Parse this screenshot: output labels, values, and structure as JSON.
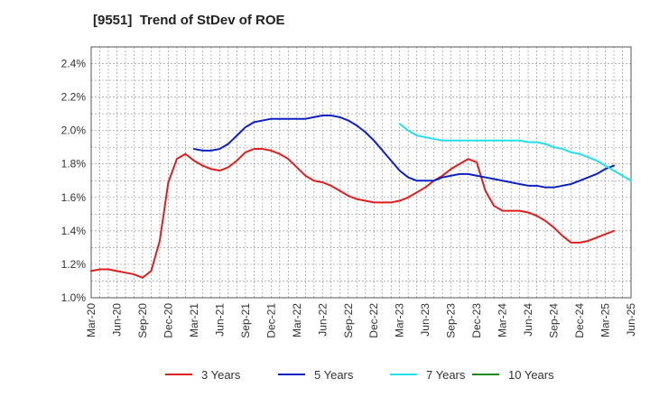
{
  "chart_data": {
    "type": "line",
    "title": "[9551]  Trend of StDev of ROE",
    "xlabel": "",
    "ylabel": "",
    "x_ticks": [
      "Mar-20",
      "Jun-20",
      "Sep-20",
      "Dec-20",
      "Mar-21",
      "Jun-21",
      "Sep-21",
      "Dec-21",
      "Mar-22",
      "Jun-22",
      "Sep-22",
      "Dec-22",
      "Mar-23",
      "Jun-23",
      "Sep-23",
      "Dec-23",
      "Mar-24",
      "Jun-24",
      "Sep-24",
      "Dec-24",
      "Mar-25",
      "Jun-25"
    ],
    "y_ticks": [
      "1.0%",
      "1.2%",
      "1.4%",
      "1.6%",
      "1.8%",
      "2.0%",
      "2.2%",
      "2.4%"
    ],
    "ylim": [
      1.0,
      2.5
    ],
    "grid": true,
    "legend_position": "bottom",
    "series": [
      {
        "name": "3 Years",
        "color": "#dd1f1f",
        "start_month": 0,
        "values": [
          1.16,
          1.17,
          1.17,
          1.16,
          1.15,
          1.14,
          1.12,
          1.16,
          1.34,
          1.69,
          1.83,
          1.86,
          1.82,
          1.79,
          1.77,
          1.76,
          1.78,
          1.82,
          1.87,
          1.89,
          1.89,
          1.88,
          1.86,
          1.83,
          1.78,
          1.73,
          1.7,
          1.69,
          1.67,
          1.64,
          1.61,
          1.59,
          1.58,
          1.57,
          1.57,
          1.57,
          1.58,
          1.6,
          1.63,
          1.66,
          1.7,
          1.73,
          1.77,
          1.8,
          1.83,
          1.81,
          1.64,
          1.55,
          1.52,
          1.52,
          1.52,
          1.51,
          1.49,
          1.46,
          1.42,
          1.37,
          1.33,
          1.33,
          1.34,
          1.36,
          1.38,
          1.4
        ]
      },
      {
        "name": "5 Years",
        "color": "#0d20c0",
        "start_month": 12,
        "values": [
          1.89,
          1.88,
          1.88,
          1.89,
          1.92,
          1.97,
          2.02,
          2.05,
          2.06,
          2.07,
          2.07,
          2.07,
          2.07,
          2.07,
          2.08,
          2.09,
          2.09,
          2.08,
          2.06,
          2.03,
          1.99,
          1.94,
          1.88,
          1.82,
          1.76,
          1.72,
          1.7,
          1.7,
          1.7,
          1.72,
          1.73,
          1.74,
          1.74,
          1.73,
          1.72,
          1.71,
          1.7,
          1.69,
          1.68,
          1.67,
          1.67,
          1.66,
          1.66,
          1.67,
          1.68,
          1.7,
          1.72,
          1.74,
          1.77,
          1.79
        ]
      },
      {
        "name": "7 Years",
        "color": "#22e0e8",
        "start_month": 36,
        "values": [
          2.04,
          2.0,
          1.97,
          1.96,
          1.95,
          1.94,
          1.94,
          1.94,
          1.94,
          1.94,
          1.94,
          1.94,
          1.94,
          1.94,
          1.94,
          1.93,
          1.93,
          1.92,
          1.9,
          1.89,
          1.87,
          1.86,
          1.84,
          1.82,
          1.79,
          1.76,
          1.73,
          1.7
        ]
      },
      {
        "name": "10 Years",
        "color": "#1a8a1a",
        "start_month": 0,
        "values": []
      }
    ]
  }
}
